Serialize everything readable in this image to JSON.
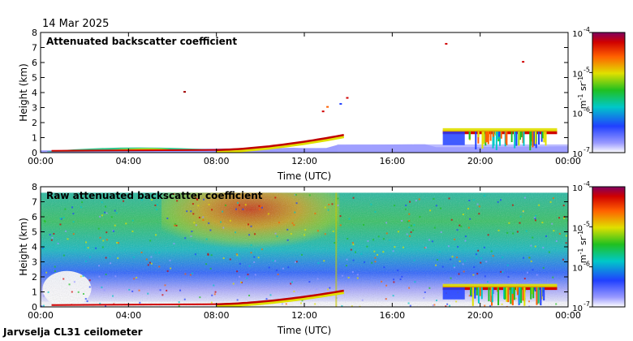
{
  "header": {
    "date": "14 Mar 2025"
  },
  "footer": {
    "station": "Jarvselja CL31 ceilometer"
  },
  "chart_data": [
    {
      "type": "heatmap",
      "title": "Attenuated backscatter coefficient",
      "xlabel": "Time (UTC)",
      "ylabel": "Height (km)",
      "xlim": [
        0,
        24
      ],
      "ylim": [
        0,
        8
      ],
      "x_ticks": [
        "00:00",
        "04:00",
        "08:00",
        "12:00",
        "16:00",
        "20:00",
        "00:00"
      ],
      "y_ticks": [
        "0",
        "1",
        "2",
        "3",
        "4",
        "5",
        "6",
        "7",
        "8"
      ],
      "colorbar": {
        "labels": [
          "10",
          "10",
          "10",
          "10"
        ],
        "exponents": [
          "-4",
          "-5",
          "-6",
          "-7"
        ],
        "values_log10": [
          -4,
          -5,
          -6,
          -7
        ],
        "unit_main": "m",
        "unit_exp1": "-1",
        "unit_mid": " sr",
        "unit_exp2": "-1"
      },
      "features": [
        {
          "name": "cloud base layer",
          "start_hour": 9.2,
          "end_hour": 13.8,
          "height_start_km": 0.2,
          "height_end_km": 1.2
        },
        {
          "name": "evening cloud layer",
          "start_hour": 18.3,
          "end_hour": 23.5,
          "height_km": 1.45
        },
        {
          "name": "boundary layer",
          "start_hour": 0,
          "end_hour": 24,
          "height_km": 0.2
        }
      ]
    },
    {
      "type": "heatmap",
      "title": "Raw attenuated backscatter coefficient",
      "xlabel": "Time (UTC)",
      "ylabel": "Height (km)",
      "xlim": [
        0,
        24
      ],
      "ylim": [
        0,
        8
      ],
      "x_ticks": [
        "00:00",
        "04:00",
        "08:00",
        "12:00",
        "16:00",
        "20:00",
        "00:00"
      ],
      "y_ticks": [
        "0",
        "1",
        "2",
        "3",
        "4",
        "5",
        "6",
        "7",
        "8"
      ],
      "colorbar": {
        "labels": [
          "10",
          "10",
          "10",
          "10"
        ],
        "exponents": [
          "-4",
          "-5",
          "-6",
          "-7"
        ],
        "values_log10": [
          -4,
          -5,
          -6,
          -7
        ],
        "unit_main": "m",
        "unit_exp1": "-1",
        "unit_mid": " sr",
        "unit_exp2": "-1"
      },
      "features": [
        {
          "name": "daytime noise maximum",
          "start_hour": 9,
          "end_hour": 13.5,
          "height_km": 6.5
        },
        {
          "name": "cloud base layer",
          "start_hour": 9.2,
          "end_hour": 13.5,
          "height_start_km": 0.2,
          "height_end_km": 1.1
        },
        {
          "name": "evening cloud layer",
          "start_hour": 18.3,
          "end_hour": 23.5,
          "height_km": 1.35
        }
      ]
    }
  ]
}
